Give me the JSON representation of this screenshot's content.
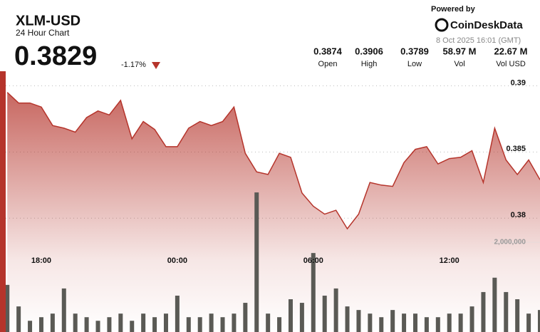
{
  "header": {
    "symbol": "XLM-USD",
    "subtitle": "24 Hour Chart",
    "price": "0.3829",
    "change": "-1.17%",
    "powered_by": "Powered by",
    "brand": "CoinDeskData",
    "timestamp": "8 Oct 2025 16:01 (GMT)",
    "stats": [
      {
        "value": "0.3874",
        "label": "Open"
      },
      {
        "value": "0.3906",
        "label": "High"
      },
      {
        "value": "0.3789",
        "label": "Low"
      },
      {
        "value": "58.97 M",
        "label": "Vol"
      },
      {
        "value": "22.67 M",
        "label": "Vol USD"
      }
    ]
  },
  "chart_data": {
    "type": "line",
    "x": [
      16.5,
      17,
      17.5,
      18,
      18.5,
      19,
      19.5,
      20,
      20.5,
      21,
      21.5,
      22,
      22.5,
      23,
      23.5,
      24,
      24.5,
      25,
      25.5,
      26,
      26.5,
      27,
      27.5,
      28,
      28.5,
      29,
      29.5,
      30,
      30.5,
      31,
      31.5,
      32,
      32.5,
      33,
      33.5,
      34,
      34.5,
      35,
      35.5,
      36,
      36.5,
      37,
      37.5,
      38,
      38.5,
      39,
      39.5,
      40
    ],
    "xlim": [
      16.43,
      40.0
    ],
    "xticks": [
      {
        "value": 18,
        "label": "18:00"
      },
      {
        "value": 24,
        "label": "00:00"
      },
      {
        "value": 30,
        "label": "06:00"
      },
      {
        "value": 36,
        "label": "12:00"
      }
    ],
    "series": [
      {
        "type": "area",
        "color": "#b5342b",
        "values": [
          0.3895,
          0.3887,
          0.3887,
          0.3884,
          0.387,
          0.3868,
          0.3865,
          0.3876,
          0.3881,
          0.3878,
          0.3889,
          0.386,
          0.3873,
          0.3867,
          0.3854,
          0.3854,
          0.3868,
          0.3873,
          0.387,
          0.3873,
          0.3884,
          0.3849,
          0.3835,
          0.3833,
          0.3849,
          0.3846,
          0.3819,
          0.3809,
          0.3803,
          0.3806,
          0.3792,
          0.3803,
          0.3827,
          0.3825,
          0.3824,
          0.3842,
          0.3852,
          0.3854,
          0.3841,
          0.3845,
          0.3846,
          0.3851,
          0.3827,
          0.3868,
          0.3844,
          0.3833,
          0.3844,
          0.3829
        ]
      },
      {
        "type": "bar",
        "axis": "y2",
        "color": "#5a5a55",
        "values": [
          1050000,
          570000,
          250000,
          330000,
          410000,
          970000,
          410000,
          330000,
          250000,
          330000,
          410000,
          250000,
          410000,
          330000,
          410000,
          810000,
          330000,
          330000,
          410000,
          330000,
          410000,
          650000,
          3110000,
          410000,
          330000,
          730000,
          650000,
          1760000,
          810000,
          970000,
          570000,
          490000,
          410000,
          330000,
          490000,
          410000,
          410000,
          330000,
          330000,
          410000,
          410000,
          570000,
          890000,
          1210000,
          890000,
          730000,
          410000,
          490000
        ]
      }
    ],
    "ylim": [
      0.3714,
      0.3911
    ],
    "yticks": [
      0.38,
      0.385,
      0.39
    ],
    "y2lim": [
      0,
      5810000
    ],
    "y2ticks": [
      {
        "value": 2000000,
        "label": "2,000,000"
      }
    ],
    "grid": true
  }
}
